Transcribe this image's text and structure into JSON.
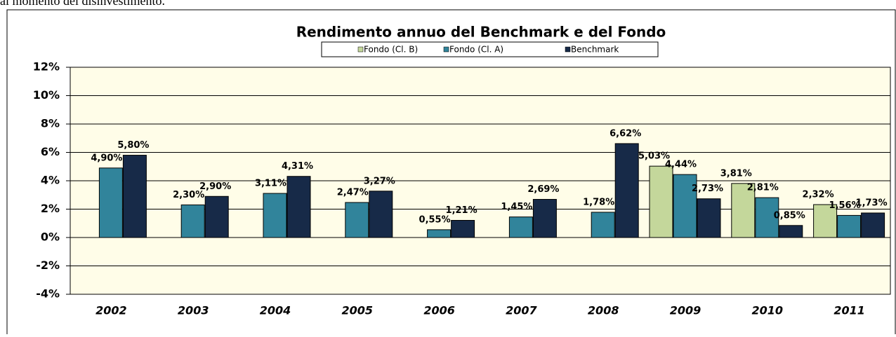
{
  "intro_text": "al momento del disinvestimento.",
  "chart_data": {
    "type": "bar",
    "title": "Rendimento annuo del Benchmark e del Fondo",
    "categories": [
      "2002",
      "2003",
      "2004",
      "2005",
      "2006",
      "2007",
      "2008",
      "2009",
      "2010",
      "2011"
    ],
    "series": [
      {
        "name": "Fondo (Cl. B)",
        "color": "#c4d79b",
        "values": [
          null,
          null,
          null,
          null,
          null,
          null,
          null,
          5.03,
          3.81,
          2.32
        ],
        "value_labels": [
          null,
          null,
          null,
          null,
          null,
          null,
          null,
          "5,03%",
          "3,81%",
          "2,32%"
        ]
      },
      {
        "name": "Fondo (Cl. A)",
        "color": "#31849b",
        "values": [
          4.9,
          2.3,
          3.11,
          2.47,
          0.55,
          1.45,
          1.78,
          4.44,
          2.81,
          1.56
        ],
        "value_labels": [
          "4,90%",
          "2,30%",
          "3,11%",
          "2,47%",
          "0,55%",
          "1,45%",
          "1,78%",
          "4,44%",
          "2,81%",
          "1,56%"
        ]
      },
      {
        "name": "Benchmark",
        "color": "#172a48",
        "values": [
          5.8,
          2.9,
          4.31,
          3.27,
          1.21,
          2.69,
          6.62,
          2.73,
          0.85,
          1.73
        ],
        "value_labels": [
          "5,80%",
          "2,90%",
          "4,31%",
          "3,27%",
          "1,21%",
          "2,69%",
          "6,62%",
          "2,73%",
          "0,85%",
          "1,73%"
        ]
      }
    ],
    "ylim": [
      -4,
      12
    ],
    "yticks": [
      {
        "value": -4,
        "label": "-4%"
      },
      {
        "value": -2,
        "label": "-2%"
      },
      {
        "value": 0,
        "label": "0%"
      },
      {
        "value": 2,
        "label": "2%"
      },
      {
        "value": 4,
        "label": "4%"
      },
      {
        "value": 6,
        "label": "6%"
      },
      {
        "value": 8,
        "label": "8%"
      },
      {
        "value": 10,
        "label": "10%"
      },
      {
        "value": 12,
        "label": "12%"
      }
    ],
    "grid": true,
    "legend": "top"
  }
}
